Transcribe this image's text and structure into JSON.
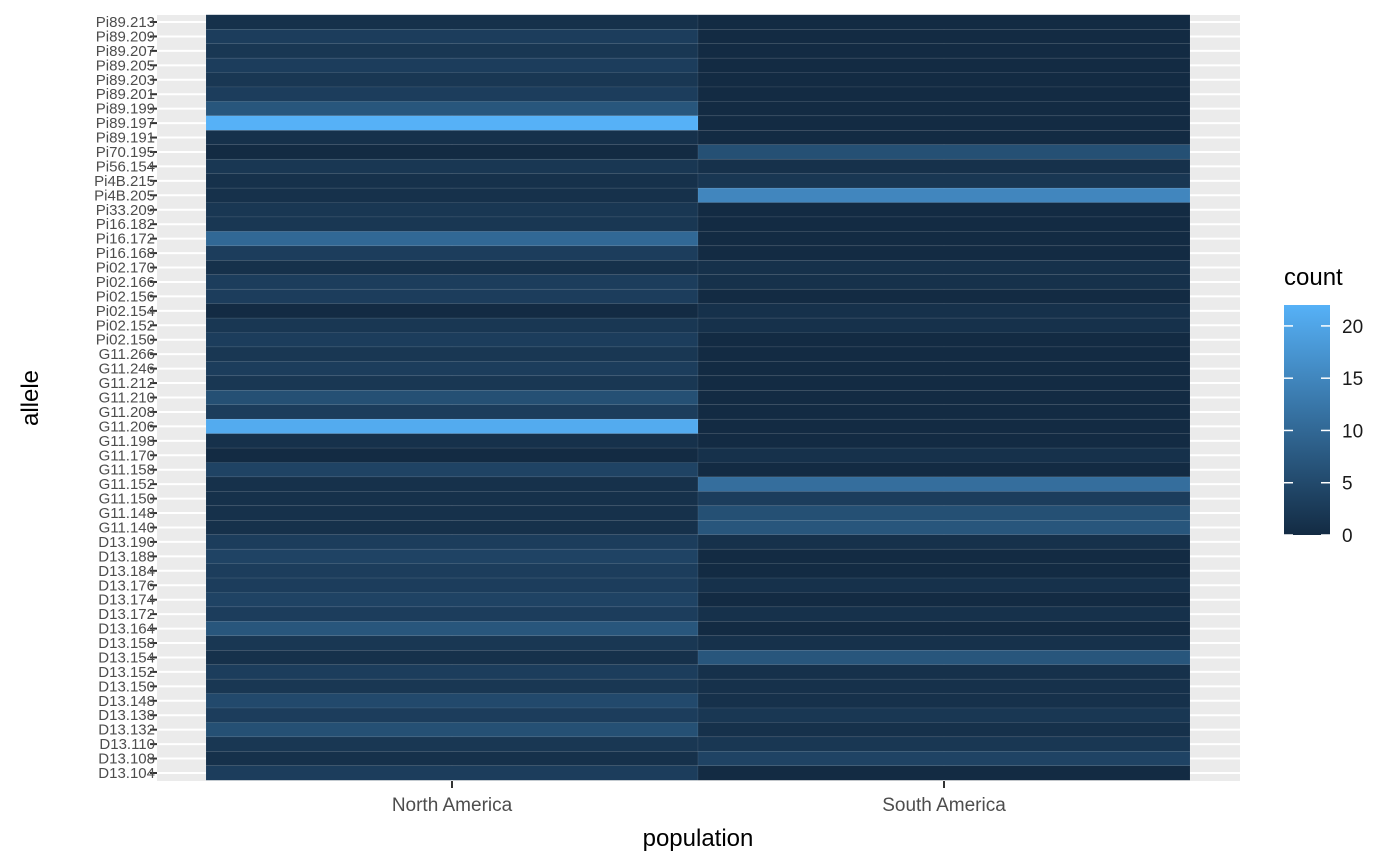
{
  "chart_data": {
    "type": "heatmap",
    "xlabel": "population",
    "ylabel": "allele",
    "x_categories": [
      "North America",
      "South America"
    ],
    "y_categories": [
      "Pi89.213",
      "Pi89.209",
      "Pi89.207",
      "Pi89.205",
      "Pi89.203",
      "Pi89.201",
      "Pi89.199",
      "Pi89.197",
      "Pi89.191",
      "Pi70.195",
      "Pi56.154",
      "Pi4B.215",
      "Pi4B.205",
      "Pi33.209",
      "Pi16.182",
      "Pi16.172",
      "Pi16.168",
      "Pi02.170",
      "Pi02.166",
      "Pi02.156",
      "Pi02.154",
      "Pi02.152",
      "Pi02.150",
      "G11.266",
      "G11.246",
      "G11.212",
      "G11.210",
      "G11.208",
      "G11.206",
      "G11.198",
      "G11.170",
      "G11.158",
      "G11.152",
      "G11.150",
      "G11.148",
      "G11.140",
      "D13.190",
      "D13.188",
      "D13.184",
      "D13.176",
      "D13.174",
      "D13.172",
      "D13.164",
      "D13.158",
      "D13.154",
      "D13.152",
      "D13.150",
      "D13.148",
      "D13.138",
      "D13.132",
      "D13.110",
      "D13.108",
      "D13.104"
    ],
    "values": [
      [
        1,
        0
      ],
      [
        3,
        0
      ],
      [
        2,
        0
      ],
      [
        3,
        0
      ],
      [
        2,
        0
      ],
      [
        3,
        0
      ],
      [
        7,
        0
      ],
      [
        22,
        0
      ],
      [
        1,
        0
      ],
      [
        0,
        6
      ],
      [
        2,
        1
      ],
      [
        1,
        2
      ],
      [
        1,
        15
      ],
      [
        2,
        0
      ],
      [
        2,
        0
      ],
      [
        10,
        0
      ],
      [
        3,
        0
      ],
      [
        1,
        1
      ],
      [
        3,
        1
      ],
      [
        3,
        0
      ],
      [
        0,
        1
      ],
      [
        2,
        1
      ],
      [
        3,
        0
      ],
      [
        2,
        0
      ],
      [
        3,
        0
      ],
      [
        2,
        0
      ],
      [
        6,
        0
      ],
      [
        3,
        0
      ],
      [
        21,
        0
      ],
      [
        1,
        0
      ],
      [
        0,
        1
      ],
      [
        4,
        0
      ],
      [
        1,
        11
      ],
      [
        1,
        3
      ],
      [
        1,
        6
      ],
      [
        1,
        7
      ],
      [
        3,
        1
      ],
      [
        4,
        0
      ],
      [
        3,
        0
      ],
      [
        3,
        1
      ],
      [
        4,
        0
      ],
      [
        3,
        1
      ],
      [
        7,
        0
      ],
      [
        2,
        1
      ],
      [
        1,
        7
      ],
      [
        3,
        1
      ],
      [
        2,
        1
      ],
      [
        5,
        1
      ],
      [
        3,
        2
      ],
      [
        6,
        1
      ],
      [
        2,
        2
      ],
      [
        1,
        4
      ],
      [
        3,
        0
      ]
    ],
    "color_scale": {
      "low": "#132B43",
      "high": "#56B1F7",
      "min": 0,
      "max": 22
    },
    "legend": {
      "title": "count",
      "ticks": [
        "0",
        "5",
        "10",
        "15",
        "20"
      ],
      "tick_values": [
        0,
        5,
        10,
        15,
        20
      ],
      "position": "right"
    },
    "panel_background": "#EBEBEB",
    "grid": true
  }
}
